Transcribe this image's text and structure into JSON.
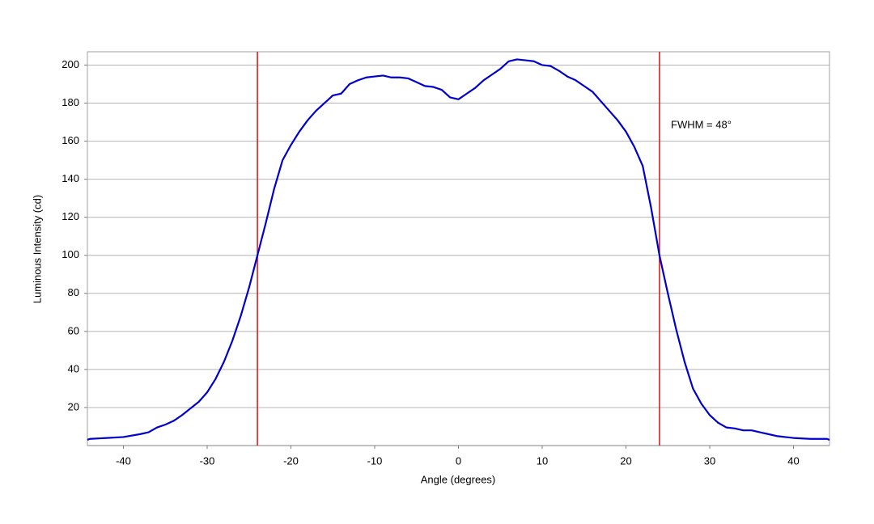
{
  "chart_data": {
    "type": "line",
    "x_label": "Angle (degrees)",
    "y_label": "Luminous Intensity (cd)",
    "annotation": "FWHM = 48°",
    "x": [
      -44.3,
      -44,
      -42,
      -40,
      -38,
      -37,
      -36,
      -35,
      -34,
      -33,
      -32,
      -31,
      -30,
      -29,
      -28,
      -27,
      -26,
      -25,
      -24,
      -23,
      -22,
      -21,
      -20,
      -19,
      -18,
      -17,
      -16,
      -15,
      -14,
      -13,
      -12,
      -11,
      -10,
      -9,
      -8,
      -7,
      -6,
      -5,
      -4,
      -3,
      -2,
      -1,
      0,
      1,
      2,
      3,
      4,
      5,
      6,
      7,
      8,
      9,
      10,
      11,
      12,
      13,
      14,
      15,
      16,
      17,
      18,
      19,
      20,
      21,
      22,
      23,
      24,
      25,
      26,
      27,
      28,
      29,
      30,
      31,
      32,
      33,
      34,
      35,
      36,
      37,
      38,
      39,
      40,
      42,
      44,
      44.3
    ],
    "series": [
      {
        "color": "#0000cc",
        "values": [
          3,
          3.5,
          4,
          4.5,
          6,
          7,
          9.5,
          11,
          13,
          16,
          19.5,
          23,
          28,
          35,
          44,
          55,
          68,
          83,
          100,
          117,
          135,
          150,
          158,
          165,
          171,
          176,
          180,
          184,
          185,
          190,
          192,
          193.5,
          194,
          194.5,
          193.5,
          193.5,
          193,
          191,
          189,
          188.5,
          187,
          183,
          182,
          185,
          188,
          192,
          195,
          198,
          202,
          203,
          202.5,
          202,
          200,
          199.5,
          197,
          194,
          192,
          189,
          186,
          181,
          176,
          171,
          165,
          157,
          147,
          125,
          100,
          80,
          61,
          44,
          30,
          22,
          16,
          12,
          9.5,
          9,
          8,
          8,
          7,
          6,
          5,
          4.5,
          4,
          3.5,
          3.5,
          3
        ]
      }
    ],
    "vlines": [
      -24,
      24
    ],
    "vline_color": "#e02020",
    "xlim": [
      -44.3,
      44.3
    ],
    "xticks": [
      -40,
      -30,
      -20,
      -10,
      0,
      10,
      20,
      30,
      40
    ],
    "ylim": [
      0,
      207
    ],
    "yticks": [
      20,
      40,
      60,
      80,
      100,
      120,
      140,
      160,
      180,
      200
    ],
    "grid": true
  }
}
